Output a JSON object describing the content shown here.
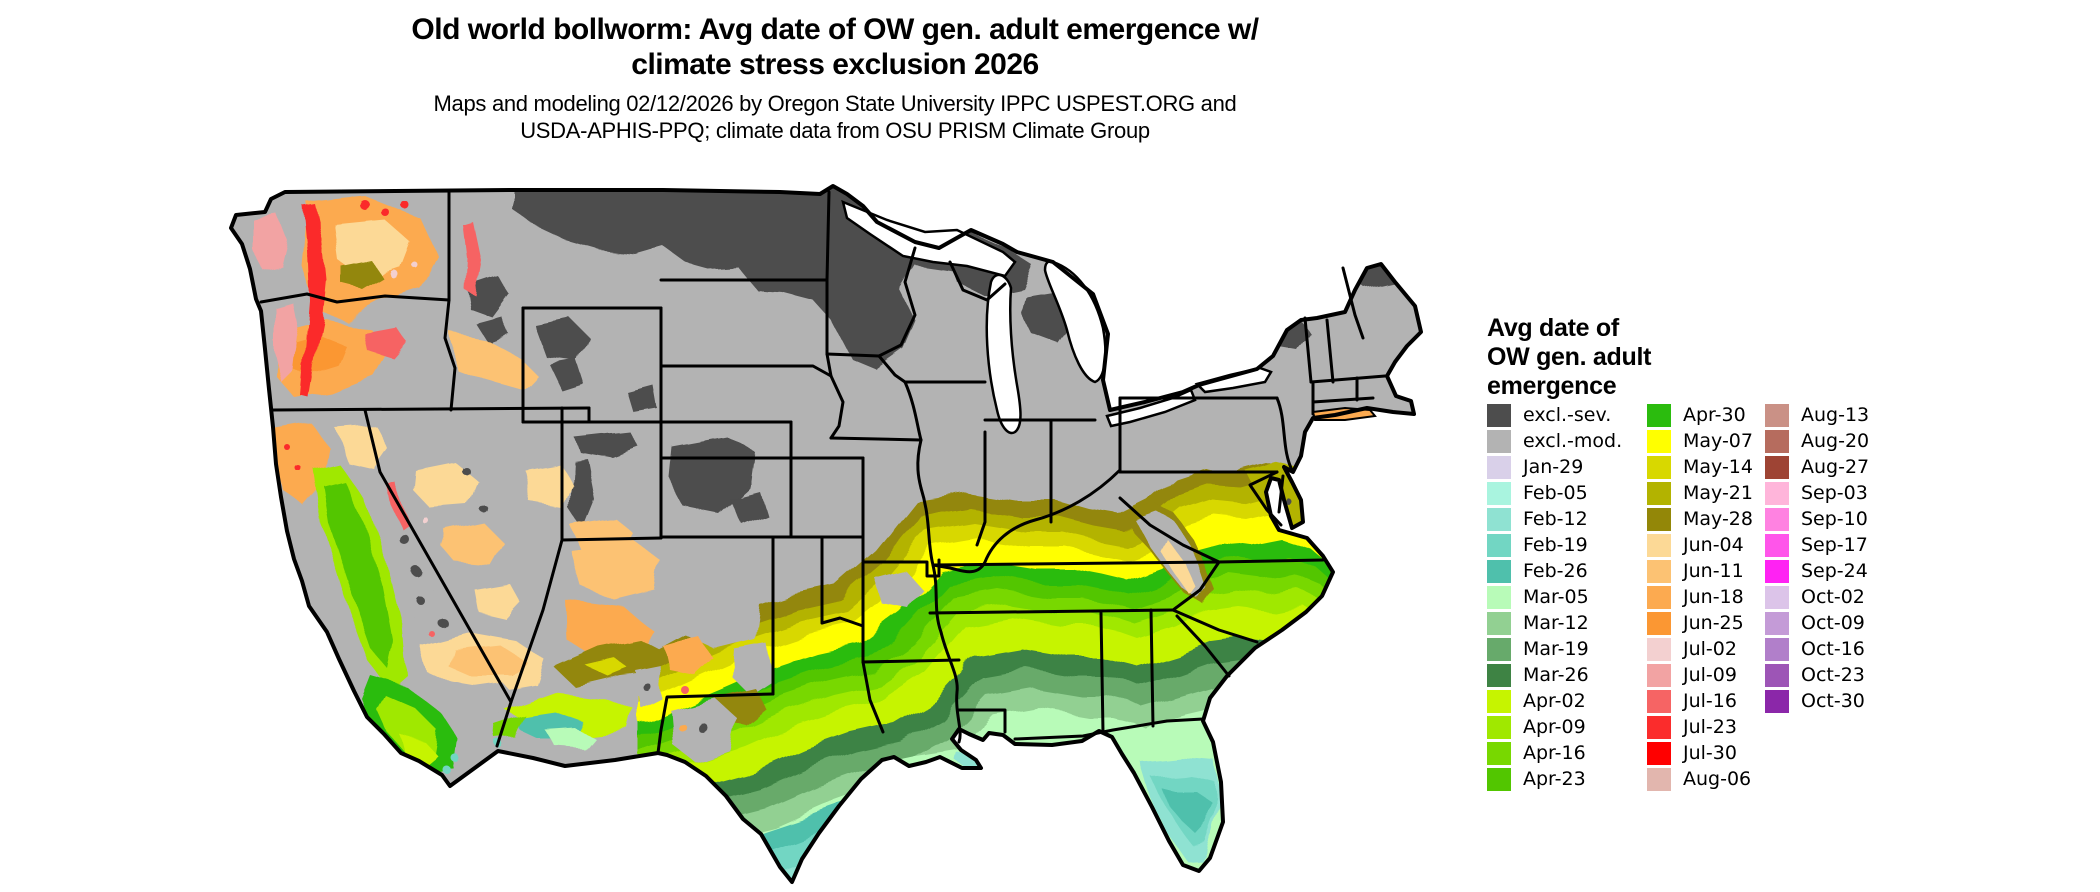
{
  "title": {
    "line1": "Old world bollworm: Avg date of OW gen. adult emergence w/",
    "line2": "climate stress exclusion 2026"
  },
  "subtitle": {
    "line1": "Maps and modeling 02/12/2026 by Oregon State University IPPC USPEST.ORG and",
    "line2": "USDA-APHIS-PPQ; climate data from OSU PRISM Climate Group"
  },
  "legend": {
    "title_lines": [
      "Avg date of",
      "OW gen. adult",
      "emergence"
    ],
    "columns": [
      [
        {
          "id": "excl_sev",
          "label": "excl.-sev."
        },
        {
          "id": "excl_mod",
          "label": "excl.-mod."
        },
        {
          "id": "jan29",
          "label": "Jan-29"
        },
        {
          "id": "feb05",
          "label": "Feb-05"
        },
        {
          "id": "feb12",
          "label": "Feb-12"
        },
        {
          "id": "feb19",
          "label": "Feb-19"
        },
        {
          "id": "feb26",
          "label": "Feb-26"
        },
        {
          "id": "mar05",
          "label": "Mar-05"
        },
        {
          "id": "mar12",
          "label": "Mar-12"
        },
        {
          "id": "mar19",
          "label": "Mar-19"
        },
        {
          "id": "mar26",
          "label": "Mar-26"
        },
        {
          "id": "apr02",
          "label": "Apr-02"
        },
        {
          "id": "apr09",
          "label": "Apr-09"
        },
        {
          "id": "apr16",
          "label": "Apr-16"
        },
        {
          "id": "apr23",
          "label": "Apr-23"
        }
      ],
      [
        {
          "id": "apr30",
          "label": "Apr-30"
        },
        {
          "id": "may07",
          "label": "May-07"
        },
        {
          "id": "may14",
          "label": "May-14"
        },
        {
          "id": "may21",
          "label": "May-21"
        },
        {
          "id": "may28",
          "label": "May-28"
        },
        {
          "id": "jun04",
          "label": "Jun-04"
        },
        {
          "id": "jun11",
          "label": "Jun-11"
        },
        {
          "id": "jun18",
          "label": "Jun-18"
        },
        {
          "id": "jun25",
          "label": "Jun-25"
        },
        {
          "id": "jul02",
          "label": "Jul-02"
        },
        {
          "id": "jul09",
          "label": "Jul-09"
        },
        {
          "id": "jul16",
          "label": "Jul-16"
        },
        {
          "id": "jul23",
          "label": "Jul-23"
        },
        {
          "id": "jul30",
          "label": "Jul-30"
        },
        {
          "id": "aug06",
          "label": "Aug-06"
        }
      ],
      [
        {
          "id": "aug13",
          "label": "Aug-13"
        },
        {
          "id": "aug20",
          "label": "Aug-20"
        },
        {
          "id": "aug27",
          "label": "Aug-27"
        },
        {
          "id": "sep03",
          "label": "Sep-03"
        },
        {
          "id": "sep10",
          "label": "Sep-10"
        },
        {
          "id": "sep17",
          "label": "Sep-17"
        },
        {
          "id": "sep24",
          "label": "Sep-24"
        },
        {
          "id": "oct02",
          "label": "Oct-02"
        },
        {
          "id": "oct09",
          "label": "Oct-09"
        },
        {
          "id": "oct16",
          "label": "Oct-16"
        },
        {
          "id": "oct23",
          "label": "Oct-23"
        },
        {
          "id": "oct30",
          "label": "Oct-30"
        }
      ]
    ]
  },
  "palette": {
    "excl_sev": "#4d4d4d",
    "excl_mod": "#b3b3b3",
    "jan29": "#d9d0e9",
    "feb05": "#a9f4df",
    "feb12": "#8fe2d2",
    "feb19": "#72d6c3",
    "feb26": "#4fc0ac",
    "mar05": "#b8fbb8",
    "mar12": "#92d092",
    "mar19": "#67aa6b",
    "mar26": "#3e8344",
    "apr02": "#c6f400",
    "apr09": "#a0e800",
    "apr16": "#78d800",
    "apr23": "#52c600",
    "apr30": "#2bbc0e",
    "may07": "#ffff00",
    "may14": "#d8d800",
    "may21": "#b3b300",
    "may28": "#938708",
    "jun04": "#fcd996",
    "jun11": "#fcc273",
    "jun18": "#fcaa50",
    "jun25": "#fb9733",
    "jul02": "#f3d0d0",
    "jul09": "#f2a3a3",
    "jul16": "#f66464",
    "jul23": "#fb2c2c",
    "jul30": "#ff0000",
    "aug06": "#e2b6ae",
    "aug13": "#ca9186",
    "aug20": "#b66c5e",
    "aug27": "#9e4434",
    "sep03": "#ffb5da",
    "sep10": "#ff82e1",
    "sep17": "#ff55ea",
    "sep24": "#ff22f3",
    "oct02": "#dcc4e9",
    "oct09": "#c49bd7",
    "oct16": "#b17fca",
    "oct23": "#9d55b6",
    "oct30": "#8b27a9"
  },
  "map": {
    "region": "Continental United States",
    "style": "raster choropleth of average adult emergence date",
    "water_color": "#ffffff",
    "border_color": "#000000"
  }
}
